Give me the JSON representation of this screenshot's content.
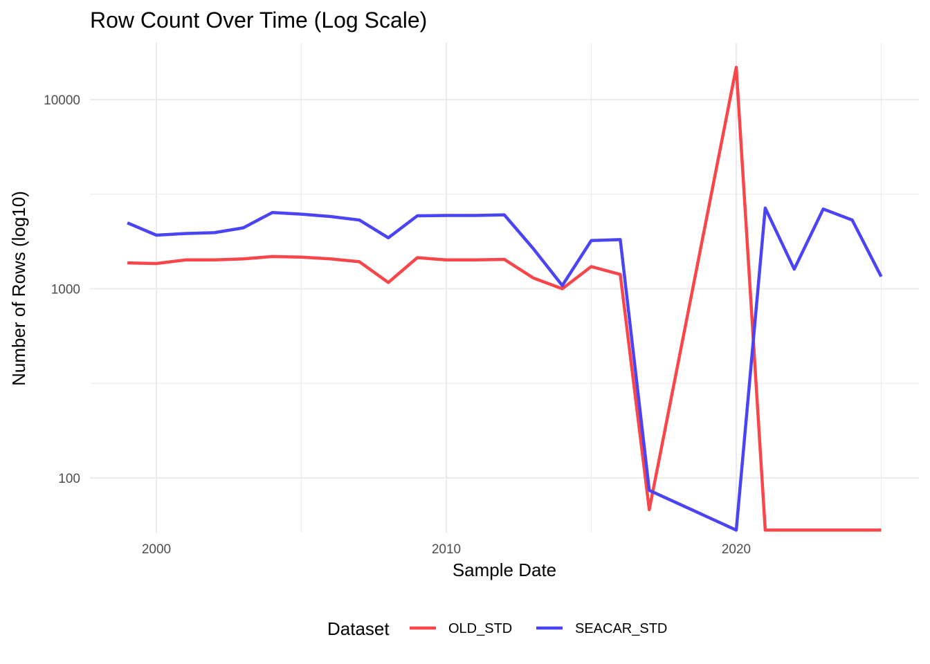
{
  "chart_data": {
    "type": "line",
    "title": "Row Count Over Time (Log Scale)",
    "xlabel": "Sample Date",
    "ylabel": "Number of Rows (log10)",
    "y_scale": "log10",
    "xlim": [
      1997.7,
      2026.3
    ],
    "ylim": [
      53,
      16500
    ],
    "x_ticks": [
      2000,
      2010,
      2020
    ],
    "x_minor_ticks": [
      2005,
      2015,
      2025
    ],
    "y_ticks": [
      100,
      1000,
      10000
    ],
    "y_minor_ticks": [
      316,
      3162
    ],
    "x_tick_labels": [
      "2000",
      "2010",
      "2020"
    ],
    "y_tick_labels": [
      "100",
      "1000",
      "10000"
    ],
    "grid": true,
    "legend": {
      "title": "Dataset",
      "position": "bottom"
    },
    "series": [
      {
        "name": "OLD_STD",
        "color": "#F8464A",
        "x": [
          1999,
          2000,
          2001,
          2002,
          2003,
          2004,
          2005,
          2006,
          2007,
          2008,
          2009,
          2010,
          2011,
          2012,
          2013,
          2014,
          2015,
          2016,
          2017,
          2020,
          2021,
          2022,
          2023,
          2024,
          2025
        ],
        "y": [
          1370,
          1360,
          1420,
          1420,
          1440,
          1480,
          1470,
          1440,
          1390,
          1080,
          1460,
          1420,
          1420,
          1430,
          1140,
          1000,
          1310,
          1190,
          68,
          14800,
          53,
          53,
          53,
          53,
          53
        ]
      },
      {
        "name": "SEACAR_STD",
        "color": "#4B44F4",
        "x": [
          1999,
          2000,
          2001,
          2002,
          2003,
          2004,
          2005,
          2006,
          2007,
          2008,
          2009,
          2010,
          2011,
          2012,
          2013,
          2014,
          2015,
          2016,
          2017,
          2020,
          2021,
          2022,
          2023,
          2024,
          2025
        ],
        "y": [
          2230,
          1920,
          1960,
          1980,
          2100,
          2530,
          2480,
          2410,
          2310,
          1860,
          2430,
          2440,
          2440,
          2460,
          1630,
          1040,
          1800,
          1820,
          86,
          53,
          2670,
          1270,
          2640,
          2310,
          1160
        ]
      }
    ]
  }
}
